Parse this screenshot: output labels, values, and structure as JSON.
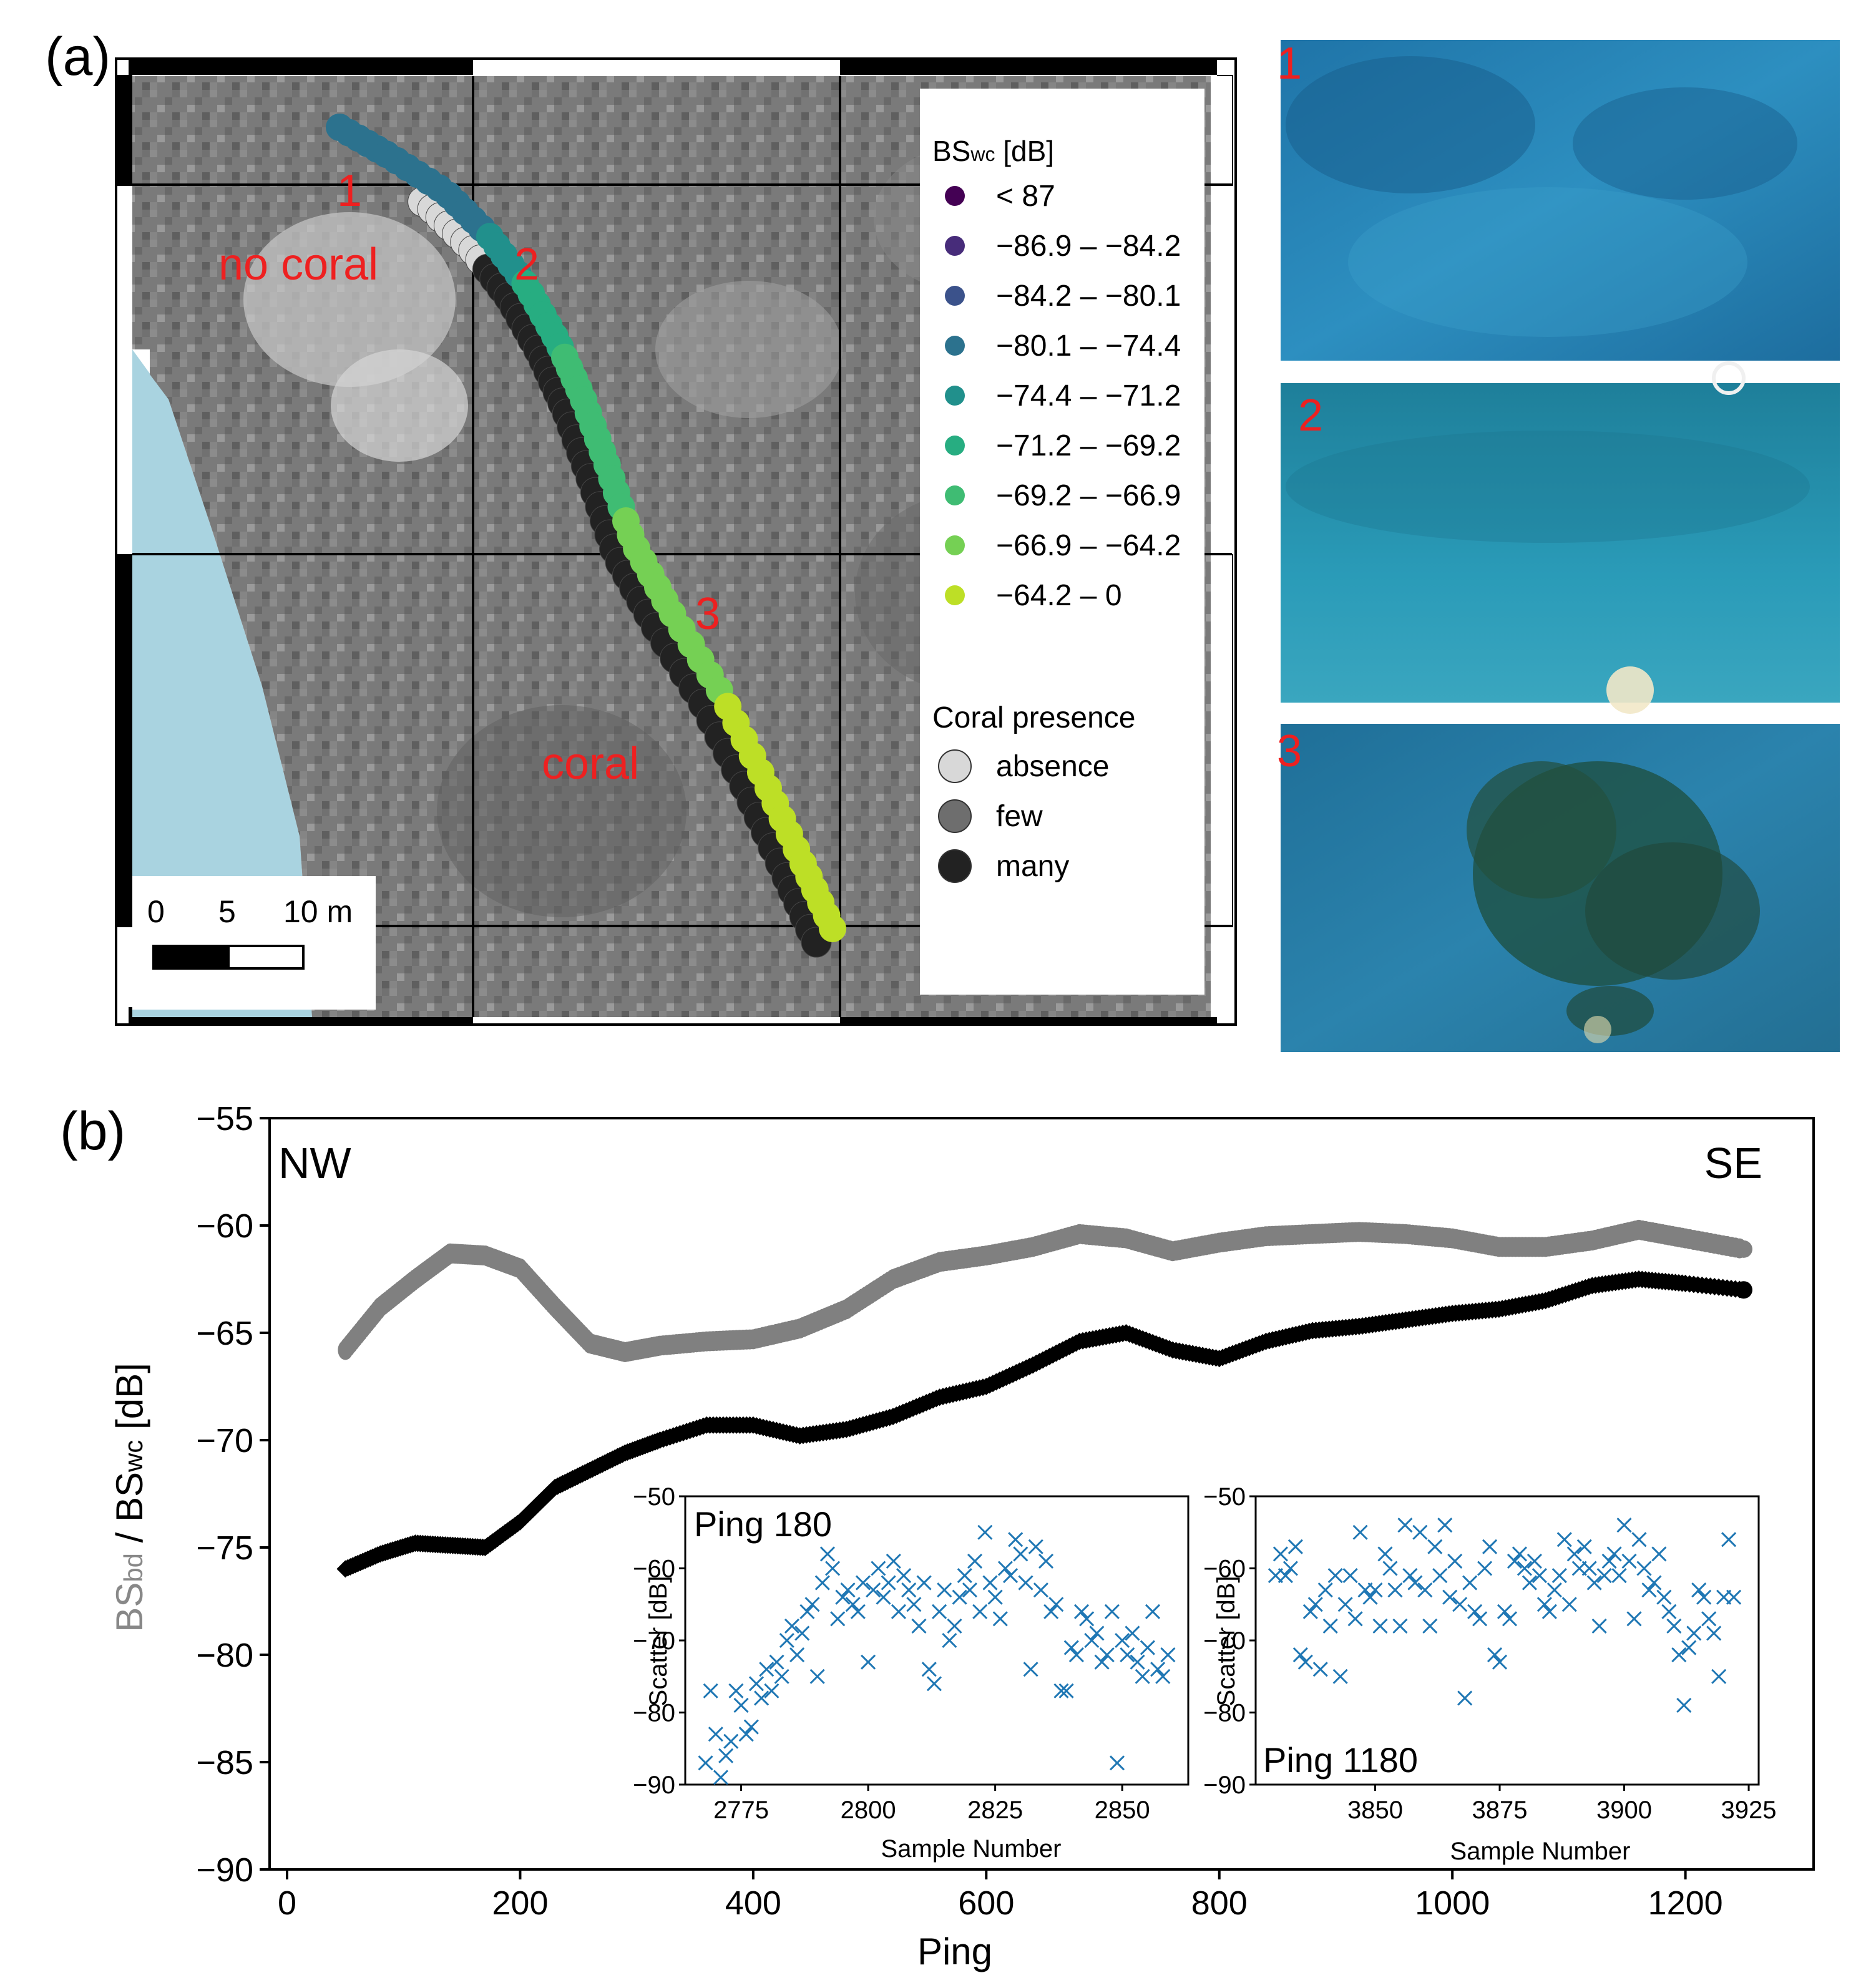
{
  "panel_a": {
    "label": "(a)",
    "legend": {
      "title_prefix": "BS",
      "title_sub": "wc",
      "title_suffix": " [dB]",
      "bins": [
        {
          "label": "< 87",
          "color": "#440154"
        },
        {
          "label": "−86.9 – −84.2",
          "color": "#472c7a"
        },
        {
          "label": "−84.2 – −80.1",
          "color": "#3b528b"
        },
        {
          "label": "−80.1 – −74.4",
          "color": "#2c728e"
        },
        {
          "label": "−74.4 – −71.2",
          "color": "#21908c"
        },
        {
          "label": "−71.2 – −69.2",
          "color": "#27ad81"
        },
        {
          "label": "−69.2 – −66.9",
          "color": "#3fbc73"
        },
        {
          "label": "−66.9 – −64.2",
          "color": "#75d054"
        },
        {
          "label": "−64.2 – 0",
          "color": "#bddf26"
        }
      ],
      "coral_title": "Coral presence",
      "coral": [
        {
          "label": "absence",
          "color": "#d8d8d8"
        },
        {
          "label": "few",
          "color": "#6e6e6e"
        },
        {
          "label": "many",
          "color": "#222222"
        }
      ]
    },
    "annotations": {
      "no_coral": "no coral",
      "coral": "coral",
      "p1": "1",
      "p2": "2",
      "p3": "3"
    },
    "scale_bar": {
      "t0": "0",
      "t1": "5",
      "t2": "10 m"
    },
    "photos": [
      {
        "label": "1",
        "tone": "#2a86b6"
      },
      {
        "label": "2",
        "tone": "#2893ae"
      },
      {
        "label": "3",
        "tone": "#2a78a0"
      }
    ]
  },
  "chart_data": [
    {
      "type": "scatter",
      "panel": "(b)",
      "title": "",
      "corner_left": "NW",
      "corner_right": "SE",
      "xlabel": "Ping",
      "ylabel_gray": "BS",
      "ylabel_gray_sub": "bd",
      "ylabel_sep": "/",
      "ylabel_black": "BS",
      "ylabel_black_sub": "wc",
      "ylabel_unit": "[dB]",
      "xlim": [
        -15,
        1310
      ],
      "ylim": [
        -90,
        -55
      ],
      "xticks": [
        0,
        200,
        400,
        600,
        800,
        1000,
        1200
      ],
      "yticks": [
        -55,
        -60,
        -65,
        -70,
        -75,
        -80,
        -85,
        -90
      ],
      "series": [
        {
          "name": "BSbd",
          "color": "#808080",
          "x": [
            50,
            80,
            110,
            140,
            170,
            200,
            230,
            260,
            290,
            320,
            360,
            400,
            440,
            480,
            520,
            560,
            600,
            640,
            680,
            720,
            760,
            800,
            840,
            880,
            920,
            960,
            1000,
            1040,
            1080,
            1120,
            1160,
            1200,
            1250
          ],
          "y": [
            -65.8,
            -63.8,
            -62.5,
            -61.3,
            -61.4,
            -62.0,
            -63.8,
            -65.5,
            -65.9,
            -65.6,
            -65.4,
            -65.3,
            -64.8,
            -63.9,
            -62.5,
            -61.7,
            -61.4,
            -61.0,
            -60.4,
            -60.6,
            -61.2,
            -60.8,
            -60.5,
            -60.4,
            -60.3,
            -60.4,
            -60.6,
            -61.0,
            -61.0,
            -60.7,
            -60.2,
            -60.6,
            -61.1
          ]
        },
        {
          "name": "BSwc",
          "color": "#000000",
          "x": [
            50,
            80,
            110,
            140,
            170,
            200,
            230,
            260,
            290,
            320,
            360,
            400,
            440,
            480,
            520,
            560,
            600,
            640,
            680,
            720,
            760,
            800,
            840,
            880,
            920,
            960,
            1000,
            1040,
            1080,
            1120,
            1160,
            1200,
            1250
          ],
          "y": [
            -76.0,
            -75.3,
            -74.8,
            -74.9,
            -75.0,
            -73.8,
            -72.2,
            -71.4,
            -70.6,
            -70.0,
            -69.3,
            -69.3,
            -69.8,
            -69.5,
            -68.9,
            -68.0,
            -67.5,
            -66.5,
            -65.4,
            -65.0,
            -65.8,
            -66.2,
            -65.4,
            -64.9,
            -64.7,
            -64.4,
            -64.1,
            -63.9,
            -63.5,
            -62.8,
            -62.5,
            -62.7,
            -63.0
          ]
        }
      ]
    },
    {
      "type": "scatter",
      "title": "Ping 180",
      "xlabel": "Sample Number",
      "ylabel": "Scatter [dB]",
      "xlim": [
        2764,
        2863
      ],
      "ylim": [
        -90,
        -50
      ],
      "xticks": [
        2775,
        2800,
        2825,
        2850
      ],
      "yticks": [
        -50,
        -60,
        -70,
        -80,
        -90
      ],
      "series": [
        {
          "name": "Ping 180",
          "marker": "x",
          "color": "#1f77b4",
          "x": [
            2768,
            2769,
            2770,
            2771,
            2772,
            2773,
            2774,
            2775,
            2776,
            2777,
            2778,
            2779,
            2780,
            2781,
            2782,
            2783,
            2784,
            2785,
            2786,
            2787,
            2788,
            2789,
            2790,
            2791,
            2792,
            2793,
            2794,
            2795,
            2796,
            2797,
            2798,
            2799,
            2800,
            2801,
            2802,
            2803,
            2804,
            2805,
            2806,
            2807,
            2808,
            2809,
            2810,
            2811,
            2812,
            2813,
            2814,
            2815,
            2816,
            2817,
            2818,
            2819,
            2820,
            2821,
            2822,
            2823,
            2824,
            2825,
            2826,
            2827,
            2828,
            2829,
            2830,
            2831,
            2832,
            2833,
            2834,
            2835,
            2836,
            2837,
            2838,
            2839,
            2840,
            2841,
            2842,
            2843,
            2844,
            2845,
            2846,
            2847,
            2848,
            2849,
            2850,
            2851,
            2852,
            2853,
            2854,
            2855,
            2856,
            2857,
            2858,
            2859
          ],
          "y": [
            -87,
            -77,
            -83,
            -89,
            -86,
            -84,
            -77,
            -79,
            -83,
            -82,
            -76,
            -78,
            -74,
            -77,
            -73,
            -75,
            -70,
            -68,
            -72,
            -69,
            -66,
            -65,
            -75,
            -62,
            -58,
            -60,
            -67,
            -64,
            -63,
            -65,
            -66,
            -62,
            -73,
            -63,
            -60,
            -64,
            -62,
            -59,
            -66,
            -61,
            -63,
            -65,
            -68,
            -62,
            -74,
            -76,
            -66,
            -63,
            -70,
            -68,
            -64,
            -61,
            -63,
            -59,
            -66,
            -55,
            -62,
            -64,
            -67,
            -60,
            -61,
            -56,
            -58,
            -62,
            -74,
            -57,
            -63,
            -59,
            -66,
            -65,
            -77,
            -77,
            -71,
            -72,
            -66,
            -67,
            -70,
            -69,
            -73,
            -72,
            -66,
            -87,
            -70,
            -72,
            -69,
            -73,
            -75,
            -71,
            -66,
            -74,
            -75,
            -72
          ]
        }
      ]
    },
    {
      "type": "scatter",
      "title": "Ping 1180",
      "xlabel": "Sample Number",
      "ylabel": "Scatter [dB]",
      "xlim": [
        3826,
        3927
      ],
      "ylim": [
        -90,
        -50
      ],
      "xticks": [
        3850,
        3875,
        3900,
        3925
      ],
      "yticks": [
        -50,
        -60,
        -70,
        -80,
        -90
      ],
      "series": [
        {
          "name": "Ping 1180",
          "marker": "x",
          "color": "#1f77b4",
          "x": [
            3830,
            3831,
            3832,
            3833,
            3834,
            3835,
            3836,
            3837,
            3838,
            3839,
            3840,
            3841,
            3842,
            3843,
            3844,
            3845,
            3846,
            3847,
            3848,
            3849,
            3850,
            3851,
            3852,
            3853,
            3854,
            3855,
            3856,
            3857,
            3858,
            3859,
            3860,
            3861,
            3862,
            3863,
            3864,
            3865,
            3866,
            3867,
            3868,
            3869,
            3870,
            3871,
            3872,
            3873,
            3874,
            3875,
            3876,
            3877,
            3878,
            3879,
            3880,
            3881,
            3882,
            3883,
            3884,
            3885,
            3886,
            3887,
            3888,
            3889,
            3890,
            3891,
            3892,
            3893,
            3894,
            3895,
            3896,
            3897,
            3898,
            3899,
            3900,
            3901,
            3902,
            3903,
            3904,
            3905,
            3906,
            3907,
            3908,
            3909,
            3910,
            3911,
            3912,
            3913,
            3914,
            3915,
            3916,
            3917,
            3918,
            3919,
            3920,
            3921,
            3922
          ],
          "y": [
            -61,
            -58,
            -61,
            -60,
            -57,
            -72,
            -73,
            -66,
            -65,
            -74,
            -63,
            -68,
            -61,
            -75,
            -65,
            -61,
            -67,
            -55,
            -63,
            -64,
            -63,
            -68,
            -58,
            -60,
            -63,
            -68,
            -54,
            -61,
            -62,
            -55,
            -63,
            -68,
            -57,
            -61,
            -54,
            -64,
            -59,
            -65,
            -78,
            -62,
            -66,
            -67,
            -60,
            -57,
            -72,
            -73,
            -66,
            -67,
            -59,
            -58,
            -60,
            -62,
            -59,
            -61,
            -65,
            -66,
            -63,
            -61,
            -56,
            -65,
            -58,
            -60,
            -57,
            -60,
            -62,
            -68,
            -61,
            -59,
            -58,
            -61,
            -54,
            -59,
            -67,
            -56,
            -60,
            -63,
            -62,
            -58,
            -64,
            -66,
            -68,
            -72,
            -79,
            -71,
            -69,
            -63,
            -64,
            -67,
            -69,
            -75,
            -64,
            -56,
            -64
          ]
        }
      ]
    }
  ]
}
